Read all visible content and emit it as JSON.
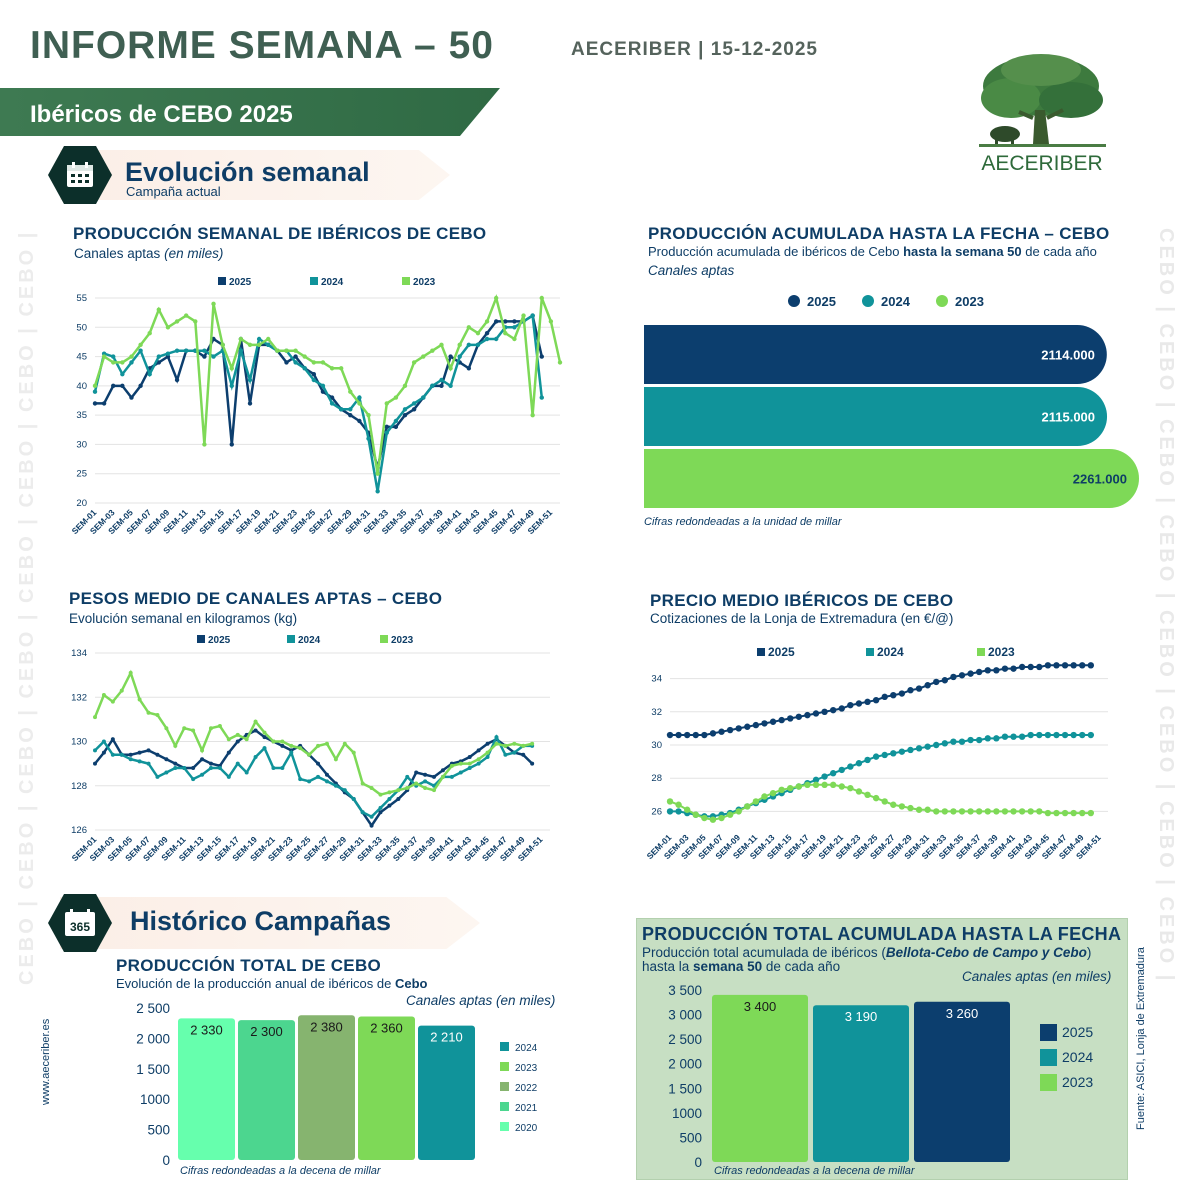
{
  "header": {
    "title": "INFORME SEMANA – 50",
    "org_date": "AECERIBER | 15-12-2025",
    "banner": "Ibéricos de CEBO 2025",
    "logo_text": "AECERIBER"
  },
  "side_text": "CEBO | CEBO | CEBO | CEBO | CEBO | CEBO | CEBO | CEBO | CEBO | CEBO | CEBO",
  "footer": {
    "url": "www.aeceriber.es",
    "source": "Fuente: ASICI, Lonja de Extremadura"
  },
  "section1": {
    "title": "Evolución semanal",
    "subtitle": "Campaña actual",
    "icon": "calendar-icon"
  },
  "section2": {
    "title": "Histórico Campañas",
    "icon": "calendar-365-icon",
    "icon_text": "365"
  },
  "colors": {
    "c2025": "#0c3e6e",
    "c2024": "#10939a",
    "c2023": "#7ed957",
    "c2022": "#86b46f",
    "c2021": "#4cd68f",
    "c2020": "#66ffad",
    "dark_green": "#2f6a44"
  },
  "charts": {
    "weekly": {
      "title": "PRODUCCIÓN SEMANAL DE IBÉRICOS DE CEBO",
      "subtitle": "Canales aptas",
      "subtitle_em": "(en miles)",
      "legend": [
        "2025",
        "2024",
        "2023"
      ]
    },
    "accum": {
      "title": "PRODUCCIÓN ACUMULADA HASTA LA FECHA – CEBO",
      "subtitle_pre": "Producción acumulada de ibéricos de Cebo ",
      "subtitle_bold": "hasta la semana 50",
      "subtitle_post": " de cada año",
      "subtitle2": "Canales aptas",
      "legend": [
        "2025",
        "2024",
        "2023"
      ],
      "note": "Cifras redondeadas a la unidad de millar"
    },
    "weights": {
      "title": "PESOS MEDIO DE CANALES APTAS – CEBO",
      "subtitle": "Evolución semanal en kilogramos (kg)",
      "legend": [
        "2025",
        "2024",
        "2023"
      ]
    },
    "price": {
      "title": "PRECIO MEDIO IBÉRICOS DE CEBO",
      "subtitle": "Cotizaciones de la Lonja de Extremadura (en €/@)",
      "legend": [
        "2025",
        "2024",
        "2023"
      ]
    },
    "hist": {
      "title": "PRODUCCIÓN TOTAL DE CEBO",
      "subtitle_pre": "Evolución de la producción anual de ibéricos de ",
      "subtitle_bold": "Cebo",
      "units": "Canales aptas (en miles)",
      "legend": [
        "2024",
        "2023",
        "2022",
        "2021",
        "2020"
      ],
      "note": "Cifras redondeadas a la decena de millar"
    },
    "total": {
      "title": "PRODUCCIÓN TOTAL ACUMULADA HASTA LA FECHA",
      "subtitle_pre": "Producción total acumulada de ibéricos (",
      "subtitle_em": "Bellota-Cebo de Campo y Cebo",
      "subtitle_post": ")",
      "subtitle2_pre": "hasta la ",
      "subtitle2_bold": "semana 50",
      "subtitle2_post": " de cada año",
      "units": "Canales aptas (en miles)",
      "legend": [
        "2025",
        "2024",
        "2023"
      ],
      "note": "Cifras redondeadas a la decena de millar"
    }
  },
  "chart_data": [
    {
      "id": "weekly",
      "type": "line",
      "title": "PRODUCCIÓN SEMANAL DE IBÉRICOS DE CEBO",
      "ylim": [
        20,
        55
      ],
      "yticks": [
        20,
        25,
        30,
        35,
        40,
        45,
        50,
        55
      ],
      "xticks": [
        "SEM-01",
        "SEM-03",
        "SEM-05",
        "SEM-07",
        "SEM-09",
        "SEM-11",
        "SEM-13",
        "SEM-15",
        "SEM-17",
        "SEM-19",
        "SEM-21",
        "SEM-23",
        "SEM-25",
        "SEM-27",
        "SEM-29",
        "SEM-31",
        "SEM-33",
        "SEM-35",
        "SEM-37",
        "SEM-39",
        "SEM-41",
        "SEM-43",
        "SEM-45",
        "SEM-47",
        "SEM-49",
        "SEM-51"
      ],
      "series": [
        {
          "name": "2025",
          "values": [
            37,
            37,
            40,
            40,
            38,
            40,
            43,
            44,
            45,
            41,
            46,
            46,
            45,
            48,
            47,
            30,
            48,
            37,
            47,
            47,
            46,
            44,
            45,
            43,
            42,
            39,
            38,
            36,
            35,
            34,
            32,
            26,
            33,
            33,
            35,
            36,
            38,
            40,
            40,
            45,
            44,
            43,
            47,
            49,
            51,
            51,
            51,
            51,
            52,
            45
          ]
        },
        {
          "name": "2024",
          "values": [
            39,
            45.5,
            45,
            42,
            44,
            46,
            42,
            45,
            45.5,
            46,
            46,
            46,
            46,
            45,
            46,
            40,
            46,
            41,
            48,
            47,
            46,
            46,
            44,
            43,
            41,
            40,
            37,
            36,
            36,
            38,
            31,
            22,
            32,
            34,
            36,
            37,
            38,
            40,
            41,
            40,
            45,
            47,
            47,
            48,
            48,
            50,
            50,
            51,
            52,
            38
          ]
        },
        {
          "name": "2023",
          "values": [
            40,
            45,
            44,
            44,
            45,
            47,
            49,
            53,
            50,
            51,
            52,
            51,
            30,
            54,
            47,
            43,
            48,
            47,
            47,
            48,
            46,
            46,
            46,
            45,
            44,
            44,
            43,
            43,
            39,
            37,
            35,
            25,
            37,
            38,
            40,
            44,
            45,
            46,
            47,
            43,
            47,
            50,
            49,
            51,
            55,
            49,
            48,
            52,
            35,
            55,
            51,
            44
          ]
        }
      ]
    },
    {
      "id": "accum",
      "type": "bar",
      "title": "PRODUCCIÓN ACUMULADA HASTA LA FECHA – CEBO",
      "categories": [
        "2025",
        "2024",
        "2023"
      ],
      "values": [
        2114000,
        2115000,
        2261000
      ],
      "labels": [
        "2114.000",
        "2115.000",
        "2261.000"
      ]
    },
    {
      "id": "weights",
      "type": "line",
      "title": "PESOS MEDIO DE CANALES APTAS – CEBO",
      "ylim": [
        126,
        134
      ],
      "yticks": [
        126,
        128,
        130,
        132,
        134
      ],
      "xticks": [
        "SEM-01",
        "SEM-03",
        "SEM-05",
        "SEM-07",
        "SEM-09",
        "SEM-11",
        "SEM-13",
        "SEM-15",
        "SEM-17",
        "SEM-19",
        "SEM-21",
        "SEM-23",
        "SEM-25",
        "SEM-27",
        "SEM-29",
        "SEM-31",
        "SEM-33",
        "SEM-35",
        "SEM-37",
        "SEM-39",
        "SEM-41",
        "SEM-43",
        "SEM-45",
        "SEM-47",
        "SEM-49",
        "SEM-51"
      ],
      "series": [
        {
          "name": "2025",
          "values": [
            129,
            129.5,
            130.1,
            129.4,
            129.4,
            129.5,
            129.6,
            129.4,
            129.2,
            129,
            128.8,
            128.8,
            129.2,
            129,
            128.9,
            129.5,
            130,
            130.3,
            130.5,
            130.2,
            130,
            129.8,
            129.6,
            129.8,
            129.4,
            129,
            128.5,
            128.1,
            127.7,
            127.4,
            126.8,
            126.2,
            126.8,
            127.1,
            127.4,
            127.8,
            128.6,
            128.5,
            128.4,
            128.7,
            129,
            129.1,
            129.3,
            129.6,
            129.9,
            130.1,
            129.8,
            129.5,
            129.4,
            129
          ]
        },
        {
          "name": "2024",
          "values": [
            129.6,
            130,
            129.4,
            129.4,
            129.2,
            129.1,
            129,
            128.4,
            128.6,
            128.8,
            128.8,
            128.3,
            128.5,
            128.8,
            128.8,
            128.4,
            129,
            128.6,
            129.3,
            129.7,
            128.8,
            128.8,
            129.5,
            128.3,
            128.2,
            128.4,
            128.2,
            128,
            127.8,
            127.4,
            126.8,
            126.6,
            127,
            127.4,
            127.8,
            128.4,
            128,
            128.2,
            128,
            128.4,
            128.4,
            128.6,
            128.8,
            129,
            129.3,
            130.2,
            129.4,
            129.5,
            129.8,
            129.8
          ]
        },
        {
          "name": "2023",
          "values": [
            131.1,
            132.1,
            131.8,
            132.3,
            133.1,
            131.9,
            131.3,
            131.2,
            130.6,
            129.8,
            130.6,
            130.5,
            129.6,
            130.6,
            130.7,
            130.1,
            130.3,
            130.1,
            130.9,
            130.4,
            130,
            130,
            129.8,
            129.7,
            129.4,
            129.8,
            129.9,
            129.2,
            129.9,
            129.5,
            128.1,
            127.9,
            127.6,
            127.7,
            127.8,
            127.9,
            128.1,
            127.9,
            127.8,
            128.4,
            128.9,
            129,
            129,
            129.2,
            129.5,
            129.9,
            129.8,
            129.9,
            129.8,
            129.9
          ]
        }
      ]
    },
    {
      "id": "price",
      "type": "line",
      "title": "PRECIO MEDIO IBÉRICOS DE CEBO",
      "ylim": [
        25,
        35
      ],
      "yticks": [
        26,
        28,
        30,
        32,
        34
      ],
      "xticks": [
        "SEM-01",
        "SEM-03",
        "SEM-05",
        "SEM-07",
        "SEM-09",
        "SEM-11",
        "SEM-13",
        "SEM-15",
        "SEM-17",
        "SEM-19",
        "SEM-21",
        "SEM-23",
        "SEM-25",
        "SEM-27",
        "SEM-29",
        "SEM-31",
        "SEM-33",
        "SEM-35",
        "SEM-37",
        "SEM-39",
        "SEM-41",
        "SEM-43",
        "SEM-45",
        "SEM-47",
        "SEM-49",
        "SEM-51"
      ],
      "series": [
        {
          "name": "2025",
          "values": [
            30.6,
            30.6,
            30.6,
            30.6,
            30.6,
            30.7,
            30.8,
            30.9,
            31.0,
            31.1,
            31.2,
            31.3,
            31.4,
            31.5,
            31.6,
            31.7,
            31.8,
            31.9,
            32.0,
            32.1,
            32.2,
            32.4,
            32.5,
            32.6,
            32.7,
            32.9,
            33.0,
            33.1,
            33.3,
            33.4,
            33.6,
            33.8,
            33.9,
            34.1,
            34.2,
            34.3,
            34.4,
            34.5,
            34.5,
            34.6,
            34.6,
            34.7,
            34.7,
            34.7,
            34.8,
            34.8,
            34.8,
            34.8,
            34.8,
            34.8
          ]
        },
        {
          "name": "2024",
          "values": [
            26.0,
            26.0,
            25.9,
            25.8,
            25.7,
            25.7,
            25.8,
            25.9,
            26.1,
            26.3,
            26.5,
            26.7,
            26.9,
            27.1,
            27.3,
            27.5,
            27.7,
            27.9,
            28.1,
            28.3,
            28.5,
            28.7,
            28.9,
            29.1,
            29.3,
            29.4,
            29.5,
            29.6,
            29.7,
            29.8,
            29.9,
            30.0,
            30.1,
            30.2,
            30.2,
            30.3,
            30.3,
            30.4,
            30.4,
            30.5,
            30.5,
            30.5,
            30.6,
            30.6,
            30.6,
            30.6,
            30.6,
            30.6,
            30.6,
            30.6
          ]
        },
        {
          "name": "2023",
          "values": [
            26.6,
            26.4,
            26.1,
            25.8,
            25.6,
            25.5,
            25.6,
            25.8,
            26.0,
            26.3,
            26.6,
            26.9,
            27.1,
            27.3,
            27.4,
            27.5,
            27.6,
            27.6,
            27.6,
            27.6,
            27.5,
            27.4,
            27.2,
            27.0,
            26.8,
            26.6,
            26.4,
            26.3,
            26.2,
            26.1,
            26.1,
            26.0,
            26.0,
            26.0,
            26.0,
            26.0,
            26.0,
            26.0,
            26.0,
            26.0,
            26.0,
            26.0,
            26.0,
            26.0,
            25.9,
            25.9,
            25.9,
            25.9,
            25.9,
            25.9
          ]
        }
      ]
    },
    {
      "id": "hist",
      "type": "bar",
      "title": "PRODUCCIÓN TOTAL DE CEBO",
      "categories": [
        "2020",
        "2021",
        "2022",
        "2023",
        "2024"
      ],
      "values": [
        2330,
        2300,
        2380,
        2360,
        2210
      ],
      "labels": [
        "2 330",
        "2 300",
        "2 380",
        "2 360",
        "2 210"
      ],
      "ylim": [
        0,
        2500
      ],
      "yticks": [
        "0",
        "500",
        "1000",
        "1 500",
        "2 000",
        "2 500"
      ]
    },
    {
      "id": "total",
      "type": "bar",
      "title": "PRODUCCIÓN TOTAL ACUMULADA HASTA LA FECHA",
      "categories": [
        "2023",
        "2024",
        "2025"
      ],
      "values": [
        3400,
        3190,
        3260
      ],
      "labels": [
        "3 400",
        "3 190",
        "3 260"
      ],
      "ylim": [
        0,
        3500
      ],
      "yticks": [
        "0",
        "500",
        "1000",
        "1 500",
        "2 000",
        "2 500",
        "3 000",
        "3 500"
      ]
    }
  ]
}
